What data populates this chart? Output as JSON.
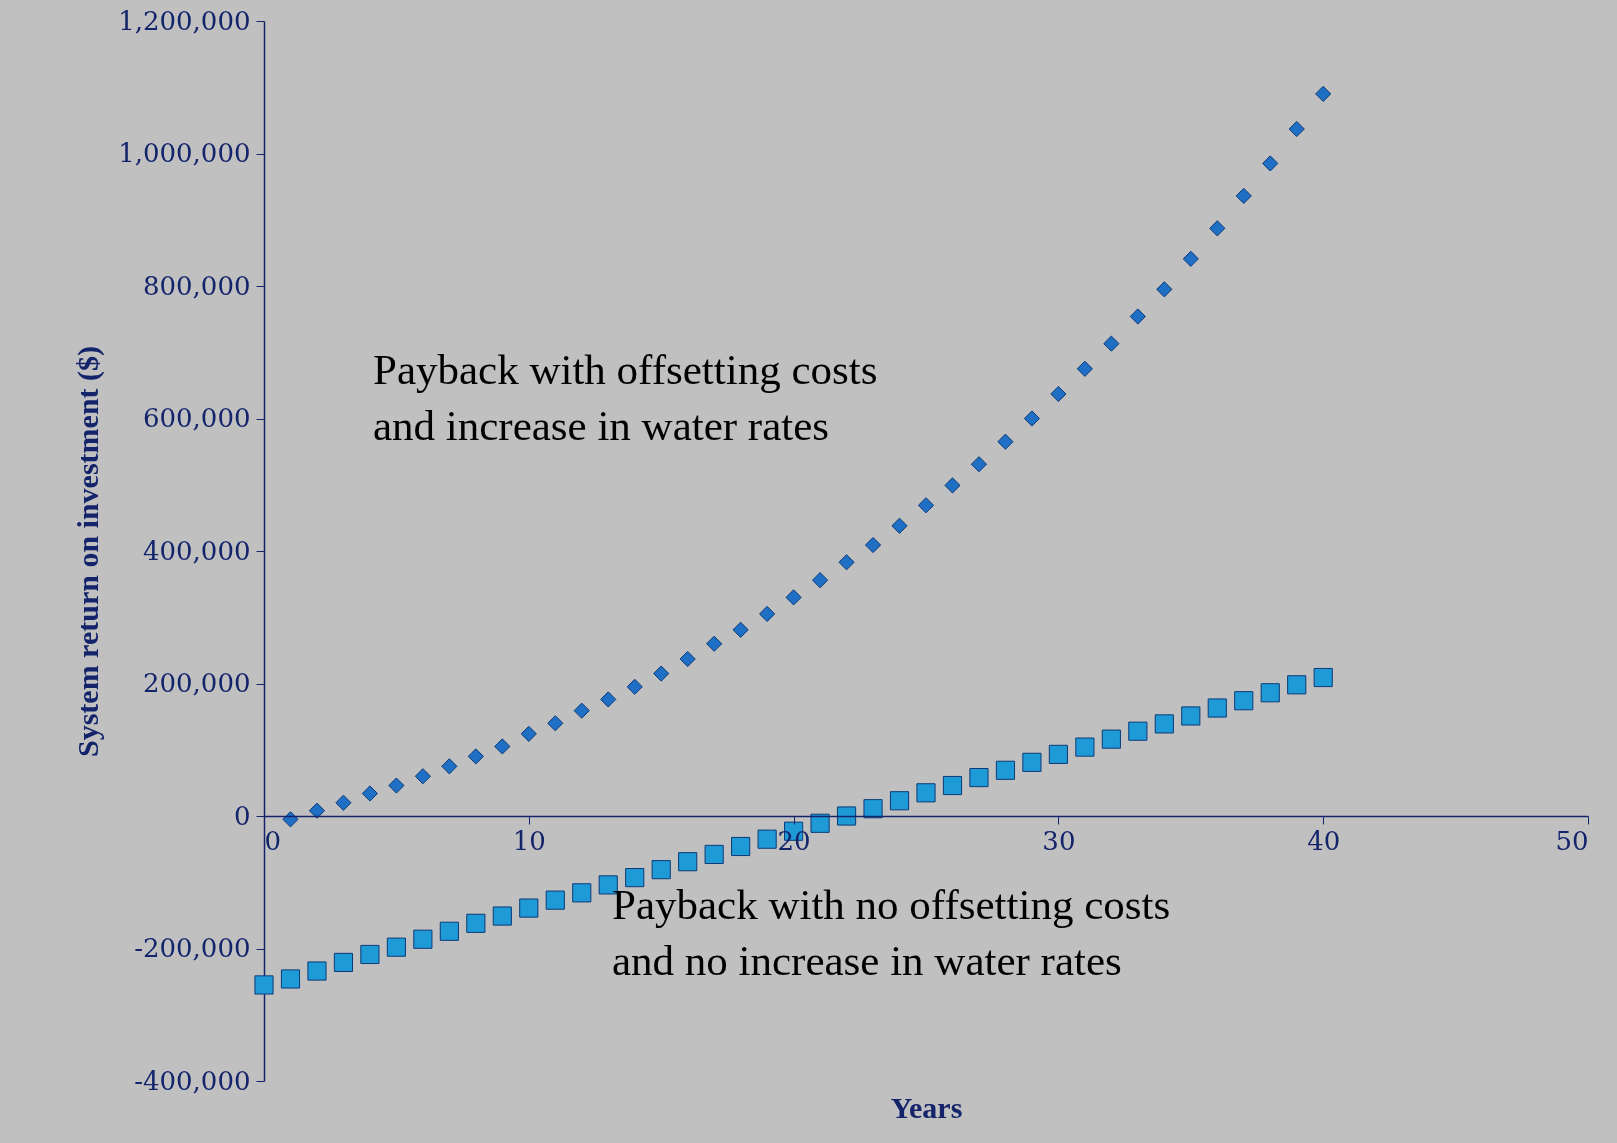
{
  "chart_data": {
    "type": "scatter",
    "xlabel": "Years",
    "ylabel": "System return on investment ($)",
    "xlim": [
      0,
      50
    ],
    "xticks": [
      0,
      10,
      20,
      30,
      40,
      50
    ],
    "ylim": [
      -400000,
      1200000
    ],
    "yticks": [
      {
        "value": -400000,
        "label": "-400,000"
      },
      {
        "value": -200000,
        "label": "-200,000"
      },
      0,
      {
        "value": 200000,
        "label": "200,000"
      },
      {
        "value": 400000,
        "label": "400,000"
      },
      {
        "value": 600000,
        "label": "600,000"
      },
      {
        "value": 800000,
        "label": "800,000"
      },
      {
        "value": 1000000,
        "label": "1,000,000"
      },
      {
        "value": 1200000,
        "label": "1,200,000"
      }
    ],
    "grid": false,
    "series": [
      {
        "name": "Payback with offsetting costs and increase in water rates",
        "color": "#1f6fc4",
        "marker": "diamond",
        "x": [
          1,
          2,
          3,
          4,
          5,
          6,
          7,
          8,
          9,
          10,
          11,
          12,
          13,
          14,
          15,
          16,
          17,
          18,
          19,
          20,
          21,
          22,
          23,
          24,
          25,
          26,
          27,
          28,
          29,
          30,
          31,
          32,
          33,
          34,
          35,
          36,
          37,
          38,
          39,
          40
        ],
        "values": [
          -5000,
          8000,
          20000,
          34000,
          46000,
          60000,
          75000,
          90000,
          105000,
          124000,
          140000,
          159000,
          176000,
          195000,
          215000,
          237000,
          260000,
          281000,
          305000,
          330000,
          356000,
          383000,
          409000,
          438000,
          469000,
          499000,
          531000,
          565000,
          600000,
          637000,
          675000,
          713000,
          754000,
          795000,
          841000,
          887000,
          936000,
          985000,
          1037000,
          1090000
        ]
      },
      {
        "name": "Payback with no offsetting costs and no increase in water rates",
        "color": "#1e9ad6",
        "marker": "square",
        "x": [
          0,
          1,
          2,
          3,
          4,
          5,
          6,
          7,
          8,
          9,
          10,
          11,
          12,
          13,
          14,
          15,
          16,
          17,
          18,
          19,
          20,
          21,
          22,
          23,
          24,
          25,
          26,
          27,
          28,
          29,
          30,
          31,
          32,
          33,
          34,
          35,
          36,
          37,
          38,
          39,
          40
        ],
        "values": [
          -255000,
          -246000,
          -234000,
          -221000,
          -209000,
          -198000,
          -186000,
          -174000,
          -162000,
          -151000,
          -139000,
          -127000,
          -116000,
          -104000,
          -93000,
          -81000,
          -69000,
          -58000,
          -46000,
          -35000,
          -23000,
          -11000,
          0,
          11000,
          23000,
          35000,
          46000,
          58000,
          69000,
          81000,
          93000,
          104000,
          116000,
          128000,
          139000,
          151000,
          163000,
          174000,
          186000,
          198000,
          209000
        ]
      }
    ]
  }
}
